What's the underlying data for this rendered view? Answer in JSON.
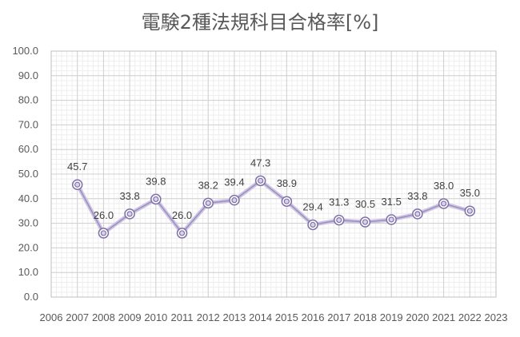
{
  "chart_data": {
    "type": "line",
    "title": "電験2種法規科目合格率[%]",
    "x": [
      "2007",
      "2008",
      "2009",
      "2010",
      "2011",
      "2012",
      "2013",
      "2014",
      "2015",
      "2016",
      "2017",
      "2018",
      "2019",
      "2020",
      "2021",
      "2022"
    ],
    "x_tick_labels": [
      "2006",
      "2007",
      "2008",
      "2009",
      "2010",
      "2011",
      "2012",
      "2013",
      "2014",
      "2015",
      "2016",
      "2017",
      "2018",
      "2019",
      "2020",
      "2021",
      "2022",
      "2023"
    ],
    "series": [
      {
        "values": [
          45.7,
          26.0,
          33.8,
          39.8,
          26.0,
          38.2,
          39.4,
          47.3,
          38.9,
          29.4,
          31.3,
          30.5,
          31.5,
          33.8,
          38.0,
          35.0
        ],
        "labels": [
          "45.7",
          "26.0",
          "33.8",
          "39.8",
          "26.0",
          "38.2",
          "39.4",
          "47.3",
          "38.9",
          "29.4",
          "31.3",
          "30.5",
          "31.5",
          "33.8",
          "38.0",
          "35.0"
        ],
        "color": "#9d8fc0"
      }
    ],
    "y_tick_labels": [
      "0.0",
      "10.0",
      "20.0",
      "30.0",
      "40.0",
      "50.0",
      "60.0",
      "70.0",
      "80.0",
      "90.0",
      "100.0"
    ],
    "xlim": [
      2006,
      2023
    ],
    "ylim": [
      0,
      100
    ],
    "grid": true,
    "legend": "none"
  }
}
